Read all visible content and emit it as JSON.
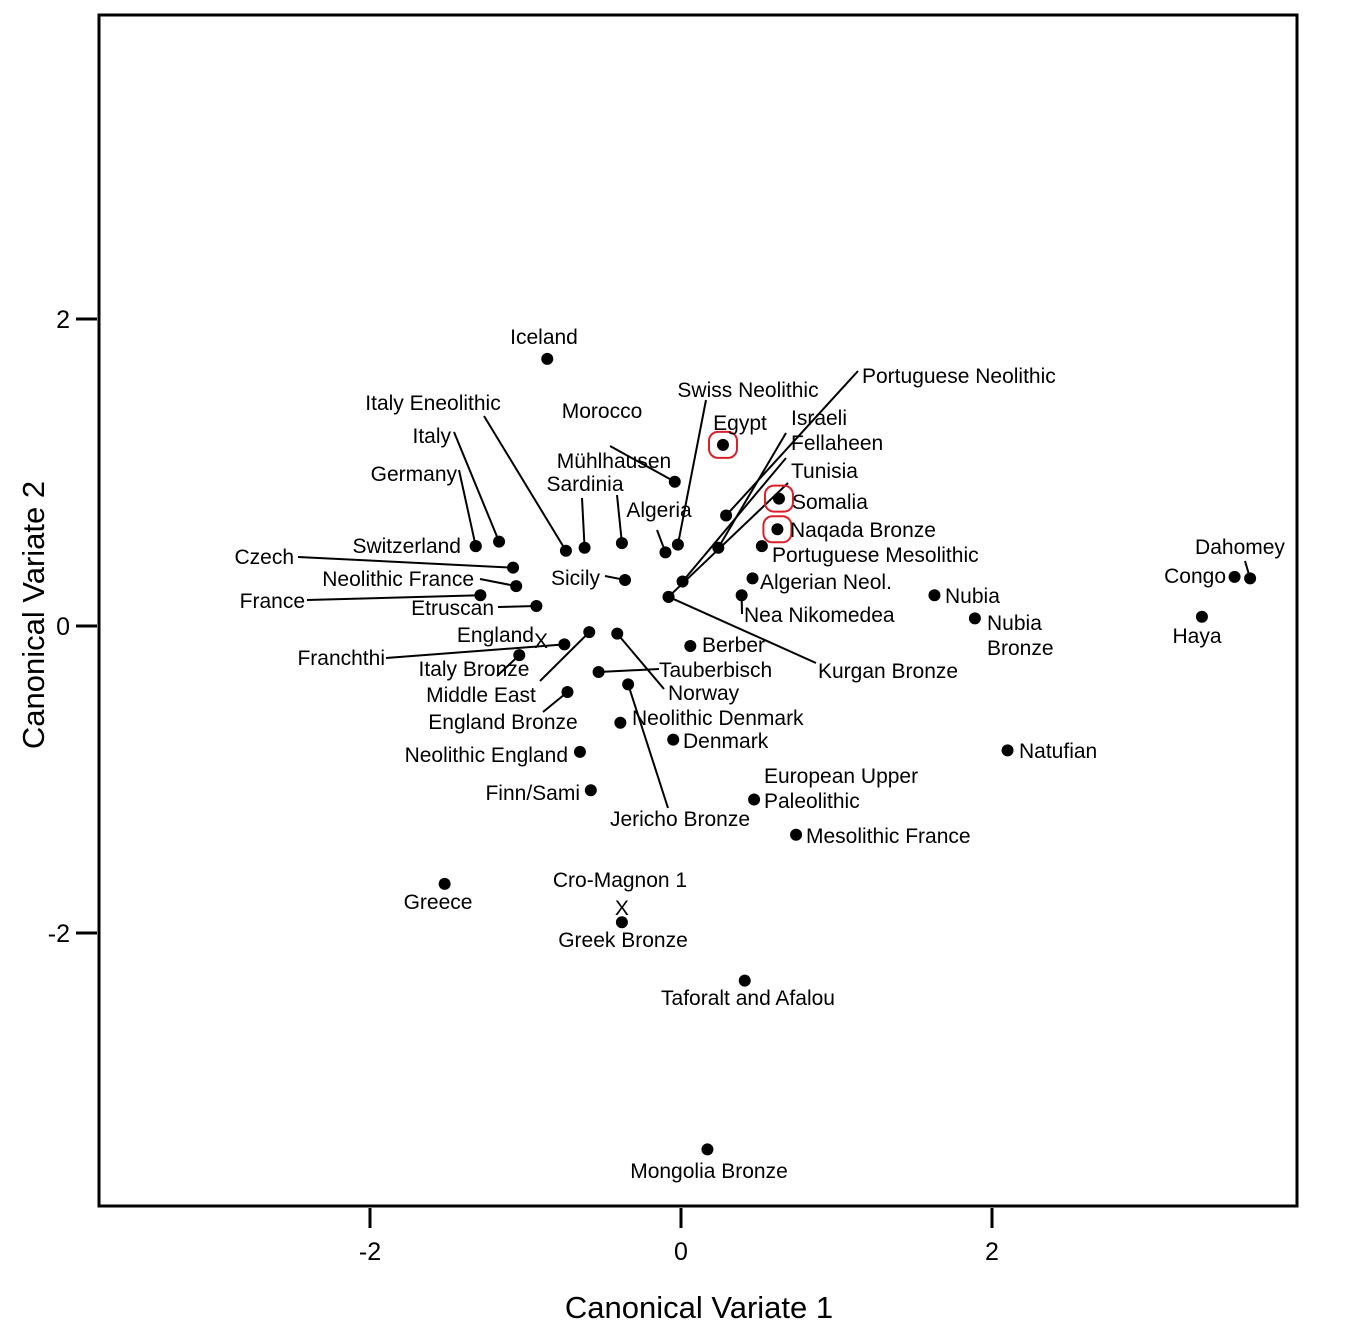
{
  "chart_data": {
    "type": "scatter",
    "xlabel": "Canonical Variate 1",
    "ylabel": "Canonical Variate 2",
    "xlim": [
      -2.9,
      4.8
    ],
    "ylim": [
      -3.77,
      4.0
    ],
    "xticks": [
      -2,
      0,
      2
    ],
    "yticks": [
      -2,
      0,
      2
    ],
    "xtick_labels": [
      "-2",
      "0",
      "2"
    ],
    "ytick_labels": [
      "-2",
      "0",
      "2"
    ],
    "grid": false,
    "highlight_color": "#d9202a",
    "points": [
      {
        "name": "Iceland",
        "label": "Iceland",
        "x": -0.86,
        "y": 1.74
      },
      {
        "name": "Egypt",
        "label": "Egypt",
        "x": 0.27,
        "y": 1.18,
        "highlighted": true
      },
      {
        "name": "Morocco",
        "label": "Morocco",
        "x": -0.04,
        "y": 0.94
      },
      {
        "name": "Somalia",
        "label": "Somalia",
        "x": 0.63,
        "y": 0.83,
        "highlighted": true
      },
      {
        "name": "Portuguese Neolithic",
        "label": "Portuguese Neolithic",
        "x": 0.29,
        "y": 0.72
      },
      {
        "name": "Naqada Bronze",
        "label": "Naqada Bronze",
        "x": 0.62,
        "y": 0.63,
        "highlighted": true
      },
      {
        "name": "Italy",
        "label": "Italy",
        "x": -1.17,
        "y": 0.55
      },
      {
        "name": "Swiss Neolithic",
        "label": "Swiss Neolithic",
        "x": -0.02,
        "y": 0.53
      },
      {
        "name": "Germany",
        "label": "Germany",
        "x": -1.32,
        "y": 0.52
      },
      {
        "name": "Italy Eneolithic",
        "label": "Italy Eneolithic",
        "x": -0.74,
        "y": 0.49
      },
      {
        "name": "Switzerland",
        "label": "Switzerland",
        "x": -1.32,
        "y": 0.52
      },
      {
        "name": "Mühlhausen",
        "label": "Mühlhausen",
        "x": -0.62,
        "y": 0.51
      },
      {
        "name": "Sardinia",
        "label": "Sardinia",
        "x": -0.38,
        "y": 0.54
      },
      {
        "name": "Algeria",
        "label": "Algeria",
        "x": -0.1,
        "y": 0.48
      },
      {
        "name": "Israeli",
        "label": "Israeli",
        "x": 0.24,
        "y": 0.51
      },
      {
        "name": "Portuguese Mesolithic",
        "label": "Portuguese Mesolithic",
        "x": 0.52,
        "y": 0.52
      },
      {
        "name": "Czech",
        "label": "Czech",
        "x": -1.08,
        "y": 0.38
      },
      {
        "name": "Neolithic France",
        "label": "Neolithic France",
        "x": -1.06,
        "y": 0.26
      },
      {
        "name": "Sicily",
        "label": "Sicily",
        "x": -0.36,
        "y": 0.3
      },
      {
        "name": "Fellaheen",
        "label": "Fellaheen",
        "x": 0.01,
        "y": 0.29
      },
      {
        "name": "Algerian Neol.",
        "label": "Algerian Neol.",
        "x": 0.46,
        "y": 0.31
      },
      {
        "name": "France",
        "label": "France",
        "x": -1.29,
        "y": 0.2
      },
      {
        "name": "Tunisia",
        "label": "Tunisia",
        "x": -0.08,
        "y": 0.19
      },
      {
        "name": "Nea Nikomedea",
        "label": "Nea Nikomedea",
        "x": 0.39,
        "y": 0.2
      },
      {
        "name": "Nubia",
        "label": "Nubia",
        "x": 1.63,
        "y": 0.2
      },
      {
        "name": "Etruscan",
        "label": "Etruscan",
        "x": -0.93,
        "y": 0.13
      },
      {
        "name": "Congo",
        "label": "Congo",
        "x": 3.56,
        "y": 0.32
      },
      {
        "name": "Dahomey",
        "label": "Dahomey",
        "x": 3.66,
        "y": 0.31
      },
      {
        "name": "Nubia Bronze",
        "label": "Nubia\nBronze",
        "x": 1.89,
        "y": 0.05
      },
      {
        "name": "Haya",
        "label": "Haya",
        "x": 3.35,
        "y": 0.06
      },
      {
        "name": "England",
        "label": "England",
        "x": -0.9,
        "y": -0.09,
        "marker": "x"
      },
      {
        "name": "Middle East",
        "label": "Middle East",
        "x": -0.59,
        "y": -0.04
      },
      {
        "name": "Norway",
        "label": "Norway",
        "x": -0.41,
        "y": -0.05
      },
      {
        "name": "Berber",
        "label": "Berber",
        "x": 0.06,
        "y": -0.13
      },
      {
        "name": "Kurgan Bronze",
        "label": "Kurgan Bronze",
        "x": -0.08,
        "y": 0.19
      },
      {
        "name": "Italy Bronze",
        "label": "Italy Bronze",
        "x": -1.04,
        "y": -0.19
      },
      {
        "name": "Franchthi",
        "label": "Franchthi",
        "x": -0.75,
        "y": -0.12
      },
      {
        "name": "Tauberbisch",
        "label": "Tauberbisch",
        "x": -0.53,
        "y": -0.3
      },
      {
        "name": "Jericho Bronze",
        "label": "Jericho Bronze",
        "x": -0.34,
        "y": -0.38
      },
      {
        "name": "England Bronze",
        "label": "England Bronze",
        "x": -0.73,
        "y": -0.43
      },
      {
        "name": "Neolithic Denmark",
        "label": "Neolithic Denmark",
        "x": -0.39,
        "y": -0.63
      },
      {
        "name": "Denmark",
        "label": "Denmark",
        "x": -0.05,
        "y": -0.74
      },
      {
        "name": "Neolithic England",
        "label": "Neolithic England",
        "x": -0.65,
        "y": -0.82
      },
      {
        "name": "Natufian",
        "label": "Natufian",
        "x": 2.1,
        "y": -0.81
      },
      {
        "name": "Finn/Sami",
        "label": "Finn/Sami",
        "x": -0.58,
        "y": -1.07
      },
      {
        "name": "European Upper Paleolithic",
        "label": "European Upper\nPaleolithic",
        "x": 0.47,
        "y": -1.13
      },
      {
        "name": "Mesolithic France",
        "label": "Mesolithic France",
        "x": 0.74,
        "y": -1.36
      },
      {
        "name": "Greece",
        "label": "Greece",
        "x": -1.52,
        "y": -1.68
      },
      {
        "name": "Cro-Magnon 1",
        "label": "Cro-Magnon 1",
        "x": -0.38,
        "y": -1.83,
        "marker": "x"
      },
      {
        "name": "Greek Bronze",
        "label": "Greek Bronze",
        "x": -0.38,
        "y": -1.93
      },
      {
        "name": "Taforalt and Afalou",
        "label": "Taforalt and Afalou",
        "x": 0.41,
        "y": -2.31
      },
      {
        "name": "Mongolia Bronze",
        "label": "Mongolia Bronze",
        "x": 0.17,
        "y": -3.41
      }
    ]
  }
}
